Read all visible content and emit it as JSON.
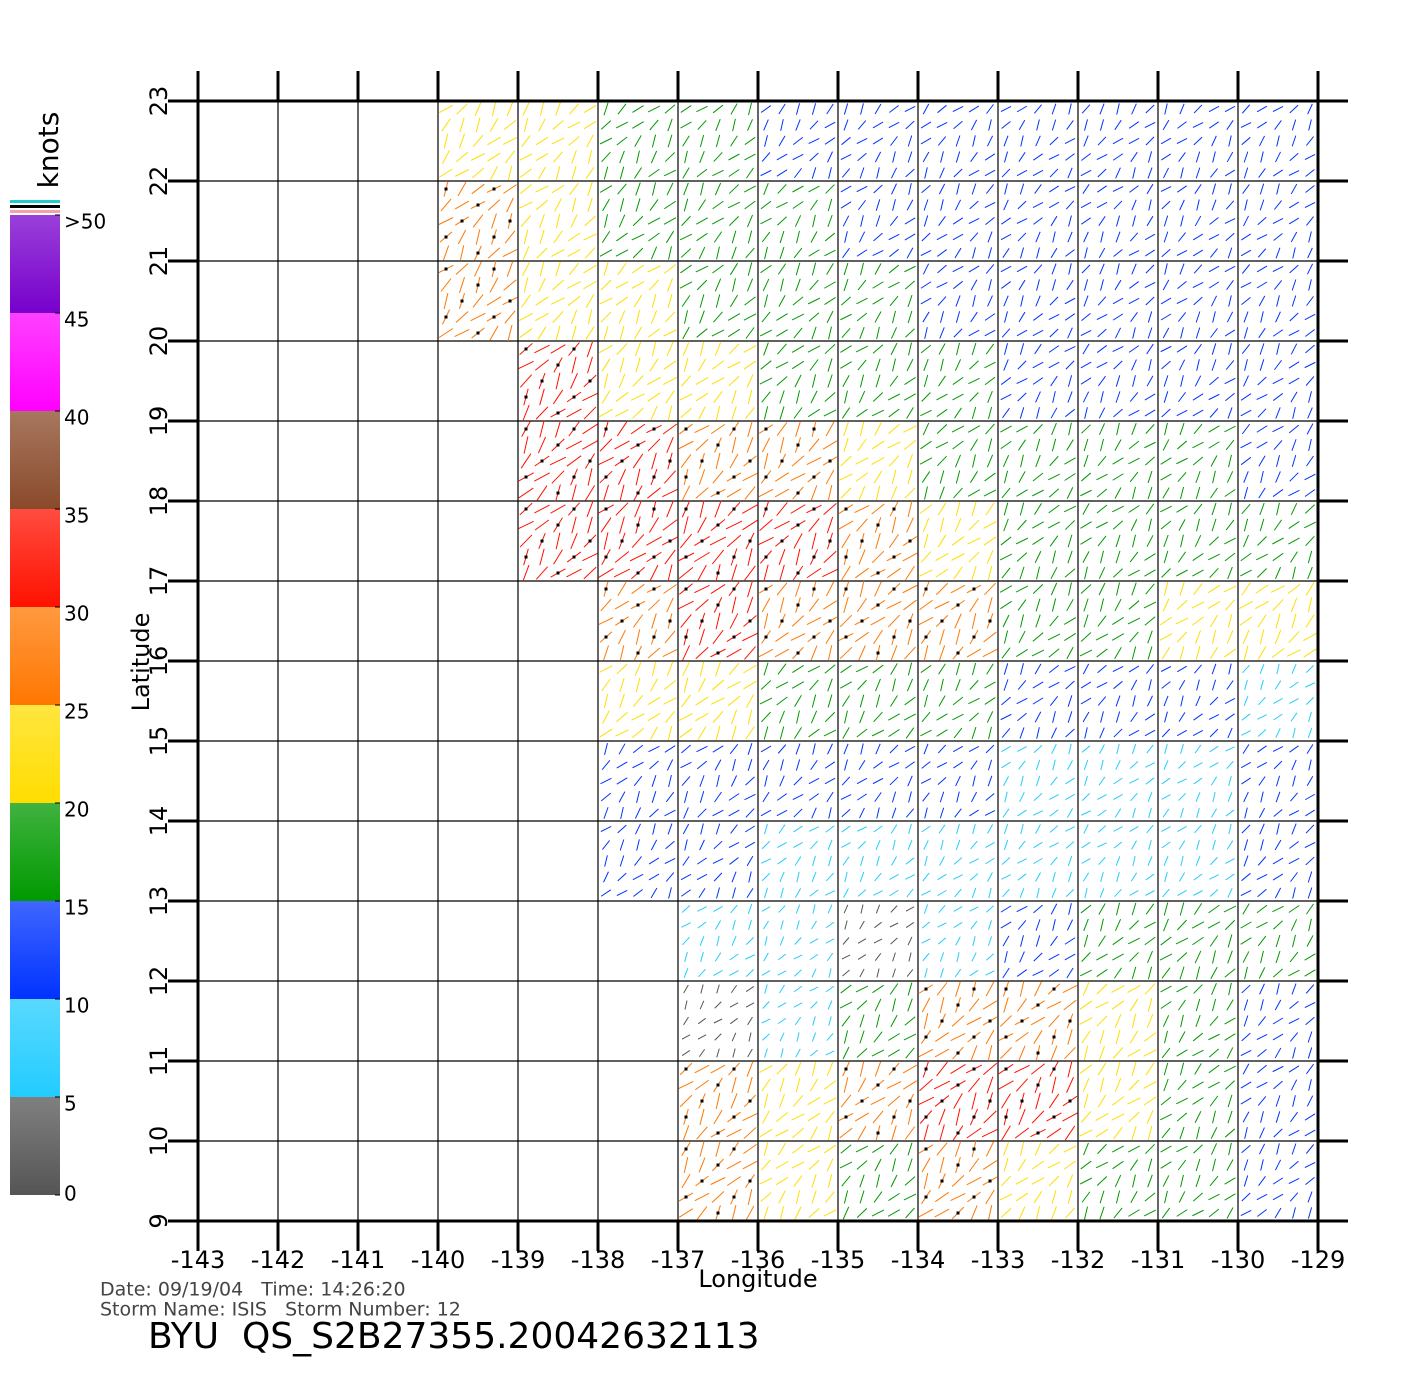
{
  "chart_data": {
    "type": "wind-field",
    "x_label": "Longitude",
    "y_label": "Latitude",
    "xlim": [
      -143,
      -129
    ],
    "ylim": [
      9,
      23
    ],
    "xticks": [
      -143,
      -142,
      -141,
      -140,
      -139,
      -138,
      -137,
      -136,
      -135,
      -134,
      -133,
      -132,
      -131,
      -130,
      -129
    ],
    "yticks": [
      9,
      10,
      11,
      12,
      13,
      14,
      15,
      16,
      17,
      18,
      19,
      20,
      21,
      22,
      23
    ],
    "grid": true,
    "lon": [
      -142.5,
      -141.5,
      -140.5,
      -139.5,
      -138.5,
      -137.5,
      -136.5,
      -135.5,
      -134.5,
      -133.5,
      -132.5,
      -131.5,
      -130.5,
      -129.5
    ],
    "lat": [
      22.5,
      21.5,
      20.5,
      19.5,
      18.5,
      17.5,
      16.5,
      15.5,
      14.5,
      13.5,
      12.5,
      11.5,
      10.5,
      9.5
    ],
    "speed": [
      [
        null,
        null,
        null,
        24,
        20,
        17,
        15,
        13,
        12,
        12,
        11,
        12,
        11,
        11
      ],
      [
        null,
        null,
        null,
        26,
        22,
        19,
        17,
        15,
        13,
        12,
        11,
        11,
        11,
        11
      ],
      [
        null,
        null,
        null,
        28,
        24,
        21,
        19,
        17,
        15,
        13,
        12,
        12,
        12,
        12
      ],
      [
        null,
        null,
        null,
        null,
        30,
        24,
        21,
        19,
        17,
        15,
        13,
        13,
        13,
        13
      ],
      [
        null,
        null,
        null,
        null,
        32,
        30,
        28,
        27,
        22,
        18,
        16,
        15,
        15,
        14
      ],
      [
        null,
        null,
        null,
        null,
        30,
        32,
        33,
        30,
        28,
        22,
        17,
        16,
        16,
        16
      ],
      [
        null,
        null,
        null,
        null,
        null,
        26,
        30,
        26,
        28,
        27,
        18,
        18,
        20,
        24
      ],
      [
        null,
        null,
        null,
        null,
        null,
        22,
        24,
        18,
        17,
        15,
        13,
        12,
        10,
        8
      ],
      [
        null,
        null,
        null,
        null,
        null,
        14,
        14,
        12,
        11,
        10,
        9,
        8,
        7,
        10
      ],
      [
        null,
        null,
        null,
        null,
        null,
        12,
        11,
        9,
        8,
        8,
        8,
        7,
        8,
        12
      ],
      [
        null,
        null,
        null,
        null,
        null,
        null,
        8,
        5,
        4,
        6,
        13,
        16,
        18,
        15
      ],
      [
        null,
        null,
        null,
        null,
        null,
        null,
        4,
        5,
        18,
        27,
        26,
        22,
        15,
        12
      ],
      [
        null,
        null,
        null,
        null,
        null,
        null,
        28,
        22,
        26,
        32,
        30,
        22,
        16,
        13
      ],
      [
        null,
        null,
        null,
        null,
        null,
        null,
        27,
        20,
        18,
        28,
        20,
        17,
        15,
        12
      ]
    ],
    "colorbar": {
      "label": "knots",
      "lim": [
        0,
        50
      ],
      "ticks": [
        0,
        5,
        10,
        15,
        20,
        25,
        30,
        35,
        40,
        45,
        {
          "value": 50,
          "label": ">50"
        }
      ],
      "colors": [
        "#555555",
        "#22ccff",
        "#0033ff",
        "#009900",
        "#ffdd00",
        "#ff7700",
        "#ff1100",
        "#8a4a2a",
        "#ff00ff",
        "#7700cc"
      ]
    },
    "info_line_1": "Date: 09/19/04   Time: 14:26:20",
    "info_line_2": "Storm Name: ISIS   Storm Number: 12",
    "footer_title": "BYU  QS_S2B27355.20042632113"
  }
}
